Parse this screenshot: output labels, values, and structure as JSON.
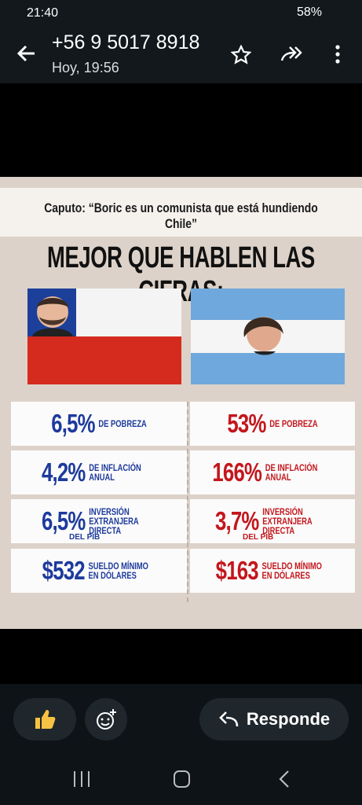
{
  "status_bar": {
    "time": "21:40",
    "battery": "58%"
  },
  "header": {
    "contact": "+56 9 5017 8918",
    "timestamp": "Hoy, 19:56"
  },
  "image": {
    "quote": "Caputo: “Boric es un comunista que está hundiendo Chile”",
    "heading": "MEJOR QUE HABLEN LAS CIFRAS:",
    "stats": [
      {
        "chile": {
          "value": "6,5%",
          "label": "DE POBREZA"
        },
        "argentina": {
          "value": "53%",
          "label": "DE POBREZA"
        }
      },
      {
        "chile": {
          "value": "4,2%",
          "label": "DE INFLACIÓN ANUAL"
        },
        "argentina": {
          "value": "166%",
          "label": "DE INFLACIÓN ANUAL"
        }
      },
      {
        "chile": {
          "value": "6,5%",
          "label": "INVERSIÓN EXTRANJERA DIRECTA",
          "sub": "DEL PIB"
        },
        "argentina": {
          "value": "3,7%",
          "label": "INVERSIÓN EXTRANJERA DIRECTA",
          "sub": "DEL PIB"
        }
      },
      {
        "chile": {
          "value": "$532",
          "label": "SUELDO MÍNIMO EN DÓLARES"
        },
        "argentina": {
          "value": "$163",
          "label": "SUELDO MÍNIMO EN DÓLARES"
        }
      }
    ]
  },
  "footer": {
    "reply": "Responde"
  }
}
